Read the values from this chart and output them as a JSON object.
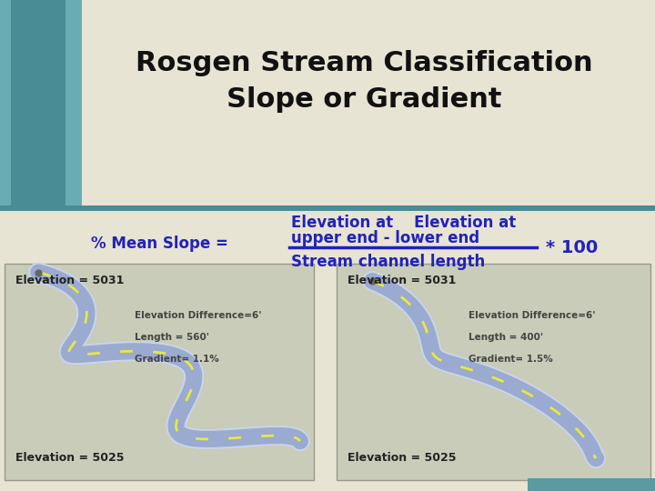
{
  "title_line1": "Rosgen Stream Classification",
  "title_line2": "Slope or Gradient",
  "title_fontsize": 22,
  "title_color": "#111111",
  "title_weight": "bold",
  "bg_color": "#e8e4d4",
  "teal_color": "#5a9aa0",
  "formula_color": "#2222bb",
  "formula_fontsize": 12,
  "label_left": "% Mean Slope =",
  "numerator_line1": "Elevation at    Elevation at",
  "numerator_line2": "upper end - lower end",
  "denominator": "Stream channel length",
  "times100": "* 100",
  "box_bg": "#c8ccb8",
  "stream_blue": "#9aaad0",
  "stream_outline": "#b8c8e8",
  "stream_dash": "#e8e840",
  "elev_color": "#222222",
  "annot_color": "#444444",
  "left_box": {
    "elev_top": "Elevation = 5031",
    "elev_bot": "Elevation = 5025",
    "annot_line1": "Elevation Difference=6'",
    "annot_line2": "Length = 560'",
    "annot_line3": "Gradient= 1.1%"
  },
  "right_box": {
    "elev_top": "Elevation = 5031",
    "elev_bot": "Elevation = 5025",
    "annot_line1": "Elevation Difference=6'",
    "annot_line2": "Length = 400'",
    "annot_line3": "Gradient= 1.5%"
  }
}
